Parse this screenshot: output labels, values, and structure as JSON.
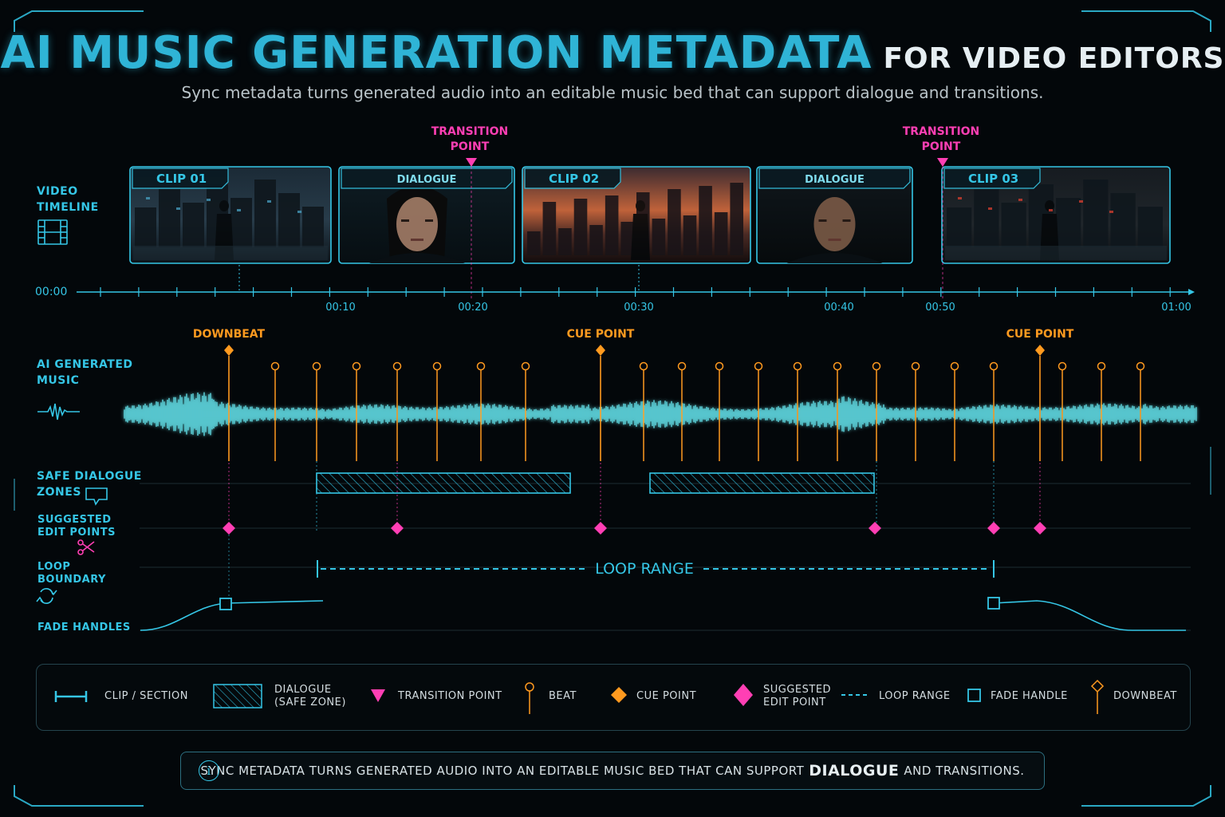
{
  "title": {
    "main": "AI MUSIC GENERATION METADATA",
    "sub": "FOR VIDEO EDITORS"
  },
  "subtitle": "Sync metadata turns generated audio into an editable music bed that can support dialogue and transitions.",
  "row_labels": {
    "video": [
      "VIDEO",
      "TIMELINE"
    ],
    "music": [
      "AI GENERATED",
      "MUSIC"
    ],
    "dialogue": [
      "SAFE DIALOGUE",
      "ZONES"
    ],
    "edit": [
      "SUGGESTED",
      "EDIT POINTS"
    ],
    "loop": [
      "LOOP",
      "BOUNDARY"
    ],
    "fade": "FADE HANDLES"
  },
  "clips": [
    {
      "label": "CLIP 01",
      "kind": "clip",
      "scene": "street"
    },
    {
      "label": "DIALOGUE",
      "kind": "dialogue",
      "scene": "woman"
    },
    {
      "label": "CLIP 02",
      "kind": "clip",
      "scene": "skyline"
    },
    {
      "label": "DIALOGUE",
      "kind": "dialogue",
      "scene": "man"
    },
    {
      "label": "CLIP 03",
      "kind": "clip",
      "scene": "alley"
    }
  ],
  "transition_label": [
    "TRANSITION",
    "POINT"
  ],
  "timeline": {
    "start": "00:00",
    "ticks": [
      "00:10",
      "00:20",
      "00:30",
      "00:40",
      "00:50",
      "01:00"
    ]
  },
  "markers": {
    "downbeat": "DOWNBEAT",
    "cue": "CUE POINT"
  },
  "loop_label": "LOOP RANGE",
  "legend": {
    "clip": "CLIP / SECTION",
    "dialogue": [
      "DIALOGUE",
      "(SAFE ZONE)"
    ],
    "transition": "TRANSITION POINT",
    "beat": "BEAT",
    "cue": "CUE POINT",
    "edit": [
      "SUGGESTED",
      "EDIT POINT"
    ],
    "loop": "LOOP RANGE",
    "fade": "FADE HANDLE",
    "downbeat": "DOWNBEAT"
  },
  "note": {
    "pre": "SYNC METADATA TURNS GENERATED AUDIO INTO AN EDITABLE MUSIC BED THAT CAN SUPPORT",
    "em": "DIALOGUE",
    "post": "AND TRANSITIONS."
  },
  "colors": {
    "cyan": "#35c6e6",
    "magenta": "#ff3fb4",
    "orange": "#ff9a1f",
    "waveform": "#5fd8e0"
  }
}
